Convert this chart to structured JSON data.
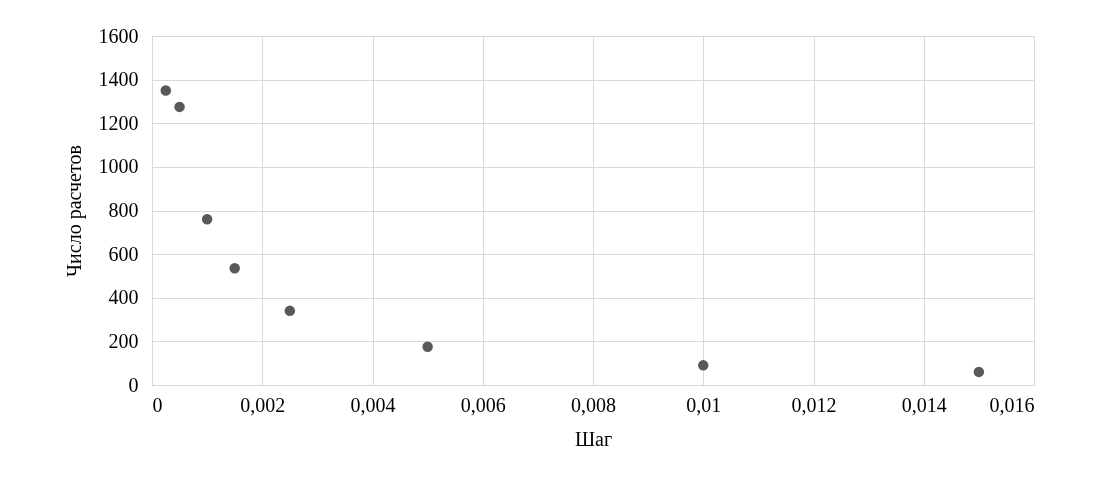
{
  "chart_data": {
    "type": "scatter",
    "xlabel": "Шаг",
    "ylabel": "Число расчетов",
    "x": [
      0.00025,
      0.0005,
      0.001,
      0.0015,
      0.0025,
      0.005,
      0.01,
      0.015
    ],
    "series": [
      {
        "color": "#595959",
        "values": [
          1350,
          1275,
          760,
          535,
          340,
          175,
          90,
          60
        ]
      }
    ],
    "xlim": [
      0,
      0.016
    ],
    "xticks": [
      0,
      {
        "value": 0.002,
        "label": "0,002"
      },
      {
        "value": 0.004,
        "label": "0,004"
      },
      {
        "value": 0.006,
        "label": "0,006"
      },
      {
        "value": 0.008,
        "label": "0,008"
      },
      {
        "value": 0.01,
        "label": "0,01"
      },
      {
        "value": 0.012,
        "label": "0,012"
      },
      {
        "value": 0.014,
        "label": "0,014"
      },
      {
        "value": 0.016,
        "label": "0,016"
      }
    ],
    "ylim": [
      0,
      1600
    ],
    "yticks": [
      0,
      200,
      400,
      600,
      800,
      1000,
      1200,
      1400,
      1600
    ],
    "grid": true,
    "marker": "circle"
  }
}
